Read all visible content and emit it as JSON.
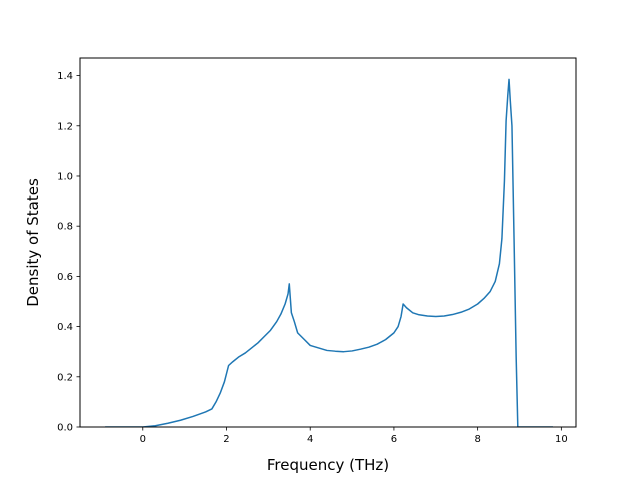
{
  "chart_data": {
    "type": "line",
    "title": "",
    "xlabel": "Frequency (THz)",
    "ylabel": "Density of States",
    "xlim": [
      -1.5,
      10.35
    ],
    "ylim": [
      0.0,
      1.47
    ],
    "xticks": [
      0,
      2,
      4,
      6,
      8,
      10
    ],
    "xtick_labels": [
      "0",
      "2",
      "4",
      "6",
      "8",
      "10"
    ],
    "yticks": [
      0.0,
      0.2,
      0.4,
      0.6,
      0.8,
      1.0,
      1.2,
      1.4
    ],
    "ytick_labels": [
      "0.0",
      "0.2",
      "0.4",
      "0.6",
      "0.8",
      "1.0",
      "1.2",
      "1.4"
    ],
    "grid": false,
    "legend": "none",
    "series": [
      {
        "color": "#1f77b4",
        "x": [
          -0.9,
          -0.5,
          0.0,
          0.3,
          0.6,
          0.9,
          1.2,
          1.5,
          1.65,
          1.75,
          1.85,
          1.95,
          2.05,
          2.15,
          2.3,
          2.45,
          2.6,
          2.75,
          2.9,
          3.05,
          3.2,
          3.3,
          3.4,
          3.47,
          3.5,
          3.55,
          3.62,
          3.7,
          3.85,
          4.0,
          4.2,
          4.4,
          4.6,
          4.8,
          5.0,
          5.2,
          5.4,
          5.6,
          5.8,
          6.0,
          6.1,
          6.17,
          6.22,
          6.3,
          6.45,
          6.6,
          6.8,
          7.0,
          7.2,
          7.4,
          7.6,
          7.8,
          8.0,
          8.15,
          8.3,
          8.42,
          8.52,
          8.58,
          8.64,
          8.68,
          8.72,
          8.75,
          8.78,
          8.82,
          8.87,
          8.92,
          8.96,
          9.2,
          9.6,
          9.8
        ],
        "y": [
          0.0,
          0.0,
          0.0,
          0.005,
          0.015,
          0.027,
          0.042,
          0.06,
          0.072,
          0.1,
          0.135,
          0.18,
          0.245,
          0.26,
          0.28,
          0.295,
          0.315,
          0.335,
          0.36,
          0.385,
          0.42,
          0.45,
          0.49,
          0.53,
          0.57,
          0.455,
          0.42,
          0.375,
          0.35,
          0.325,
          0.315,
          0.305,
          0.302,
          0.3,
          0.303,
          0.31,
          0.318,
          0.33,
          0.348,
          0.375,
          0.4,
          0.44,
          0.49,
          0.475,
          0.455,
          0.447,
          0.442,
          0.44,
          0.442,
          0.448,
          0.457,
          0.47,
          0.49,
          0.512,
          0.54,
          0.58,
          0.65,
          0.75,
          0.98,
          1.22,
          1.32,
          1.385,
          1.3,
          1.2,
          0.75,
          0.28,
          0.0,
          0.0,
          0.0,
          0.0
        ]
      }
    ]
  }
}
